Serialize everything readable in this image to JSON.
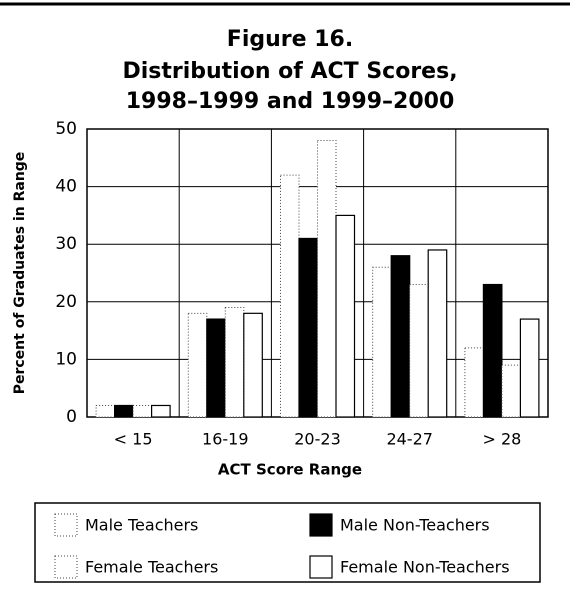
{
  "chart_data": {
    "type": "bar",
    "title_lines": [
      "Figure 16.",
      "Distribution of ACT Scores,",
      "1998–1999 and 1999–2000"
    ],
    "x_label": "ACT Score Range",
    "y_label": "Percent of Graduates in Range",
    "categories": [
      "< 15",
      "16-19",
      "20-23",
      "24-27",
      "> 28"
    ],
    "series": [
      {
        "name": "Male Teachers",
        "color": "#ffffff",
        "border": "dotted",
        "values": [
          2,
          18,
          42,
          26,
          12
        ]
      },
      {
        "name": "Male Non-Teachers",
        "color": "#000000",
        "border": "solid",
        "values": [
          2,
          17,
          31,
          28,
          23
        ]
      },
      {
        "name": "Female Teachers",
        "color": "#ffffff",
        "border": "dotted",
        "values": [
          2,
          19,
          48,
          23,
          9
        ]
      },
      {
        "name": "Female Non-Teachers",
        "color": "#ffffff",
        "border": "solid",
        "values": [
          2,
          18,
          35,
          29,
          17
        ]
      }
    ],
    "ylim": [
      0,
      50
    ],
    "yticks": [
      0,
      10,
      20,
      30,
      40,
      50
    ],
    "grid": true
  }
}
